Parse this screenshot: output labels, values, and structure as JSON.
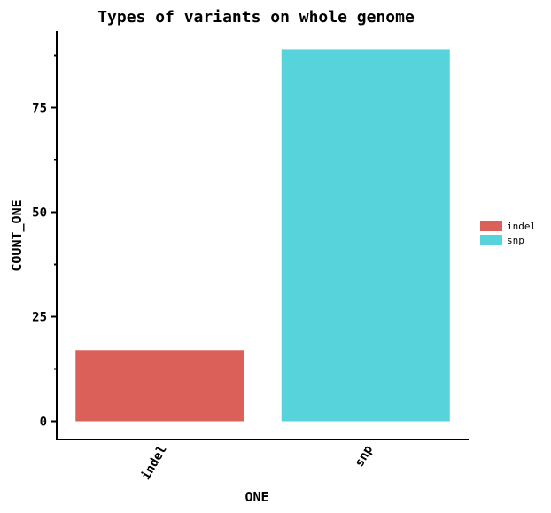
{
  "chart_data": {
    "type": "bar",
    "title": "Types of variants on whole genome",
    "xlabel": "ONE",
    "ylabel": "COUNT_ONE",
    "categories": [
      "indel",
      "snp"
    ],
    "values": [
      17,
      89
    ],
    "ylim": [
      0,
      93
    ],
    "y_ticks": [
      0,
      25,
      50,
      75
    ],
    "colors": [
      "#dc605a",
      "#57d3db"
    ],
    "grid": false,
    "legend": {
      "position": "right",
      "entries": [
        "indel",
        "snp"
      ]
    }
  }
}
